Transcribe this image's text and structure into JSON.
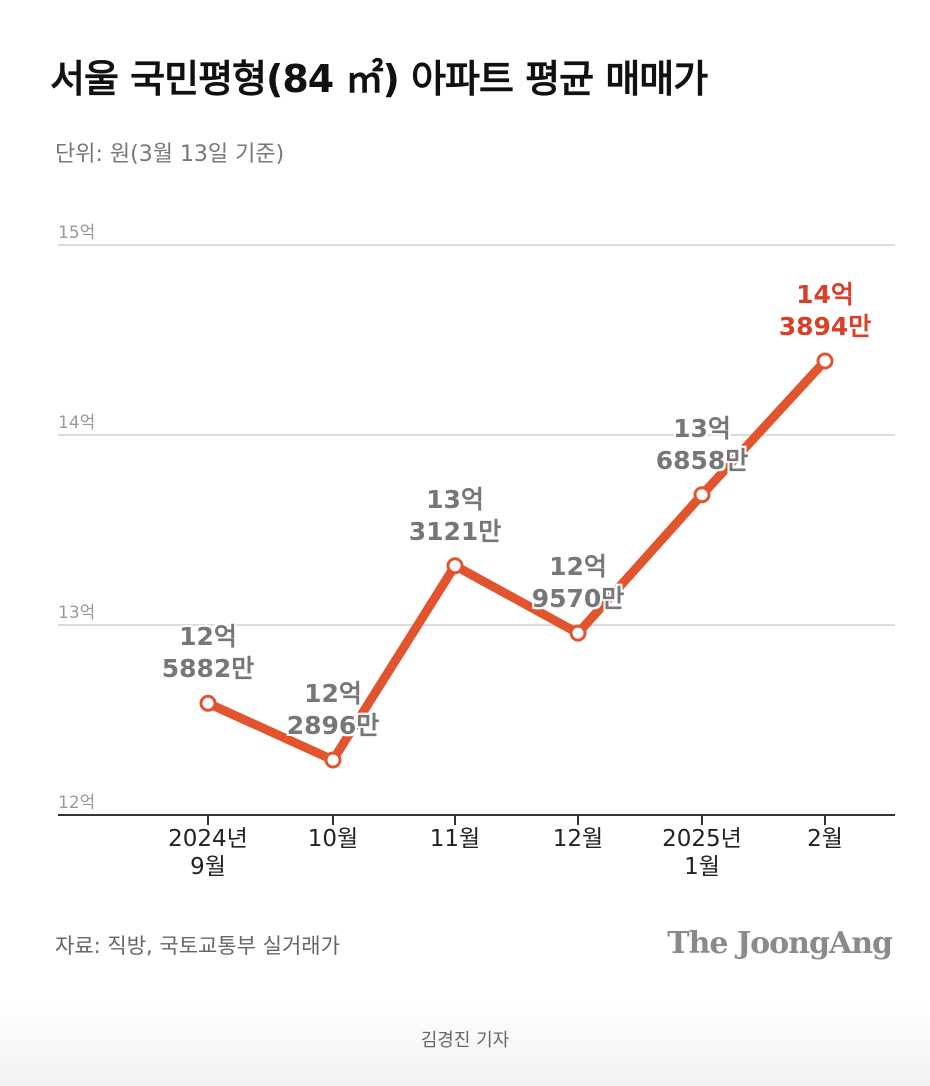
{
  "chart_data": {
    "type": "line",
    "title": "서울 국민평형(84 ㎡) 아파트 평균 매매가",
    "subtitle": "단위: 원(3월 13일 기준)",
    "categories": [
      "2024년\n9월",
      "10월",
      "11월",
      "12월",
      "2025년\n1월",
      "2월"
    ],
    "series": [
      {
        "color": "#e2542e",
        "values": [
          12.5882,
          12.2896,
          13.3121,
          12.957,
          13.6858,
          14.3894
        ],
        "value_labels": [
          "12억\n5882만",
          "12억\n2896만",
          "13억\n3121만",
          "12억\n9570만",
          "13억\n6858만",
          "14억\n3894만"
        ],
        "value_label_colors": [
          "#777777",
          "#777777",
          "#777777",
          "#777777",
          "#777777",
          "#d9402a"
        ]
      }
    ],
    "ylim": [
      12,
      15
    ],
    "yticks": [
      {
        "value": 12,
        "label": "12억"
      },
      {
        "value": 13,
        "label": "13억"
      },
      {
        "value": 14,
        "label": "14억"
      },
      {
        "value": 15,
        "label": "15억"
      }
    ],
    "grid": true,
    "source": "자료: 직방, 국토교통부 실거래가",
    "credit": "The JoongAng"
  },
  "byline": "김경진 기자"
}
